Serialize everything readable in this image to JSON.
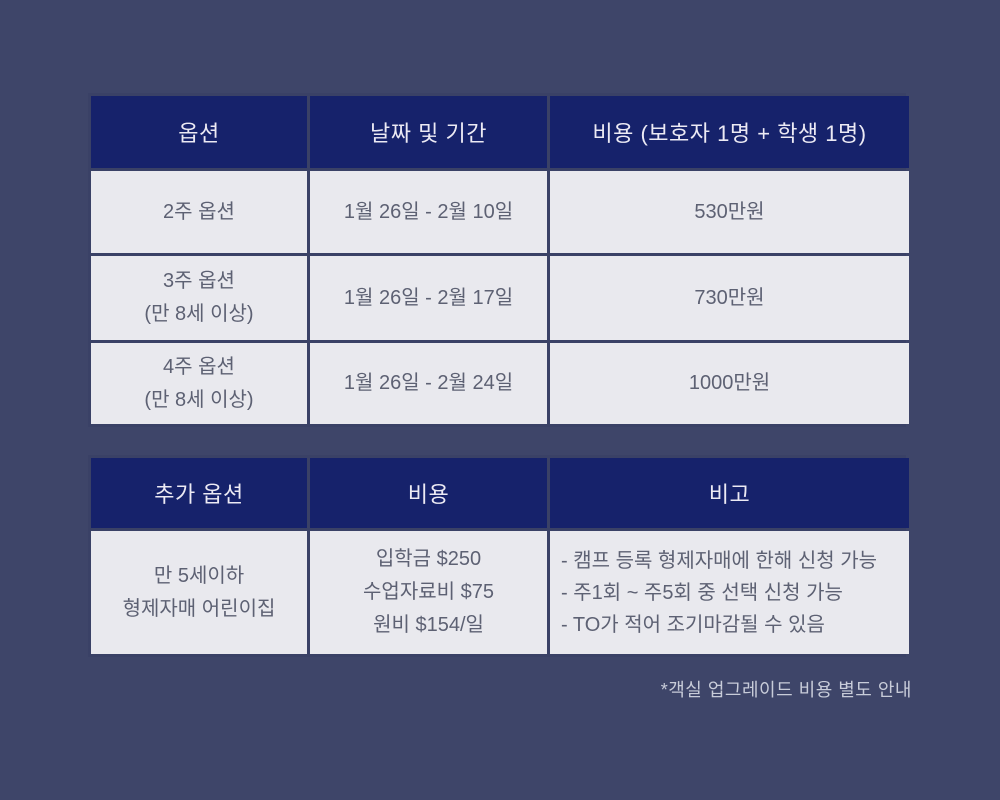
{
  "colors": {
    "page_background": "#3e4569",
    "header_background": "#16226b",
    "header_text": "#eceaf4",
    "cell_background": "#e9e9ee",
    "cell_text": "#5d6173",
    "border": "#3a4166",
    "footnote_text": "#c8ccd9"
  },
  "table1": {
    "headers": [
      "옵션",
      "날짜 및 기간",
      "비용 (보호자 1명 + 학생 1명)"
    ],
    "rows": [
      {
        "option": [
          "2주 옵션"
        ],
        "period": "1월 26일 - 2월 10일",
        "price": "530만원"
      },
      {
        "option": [
          "3주 옵션",
          "(만 8세 이상)"
        ],
        "period": "1월 26일 - 2월 17일",
        "price": "730만원"
      },
      {
        "option": [
          "4주 옵션",
          "(만 8세 이상)"
        ],
        "period": "1월 26일 - 2월 24일",
        "price": "1000만원"
      }
    ]
  },
  "table2": {
    "headers": [
      "추가 옵션",
      "비용",
      "비고"
    ],
    "row": {
      "option": [
        "만 5세이하",
        "형제자매 어린이집"
      ],
      "cost": [
        "입학금 $250",
        "수업자료비 $75",
        "원비 $154/일"
      ],
      "notes": [
        "- 캠프 등록 형제자매에 한해 신청 가능",
        "- 주1회 ~ 주5회 중 선택 신청 가능",
        "- TO가 적어 조기마감될 수 있음"
      ]
    }
  },
  "footnote": "*객실 업그레이드 비용 별도 안내"
}
